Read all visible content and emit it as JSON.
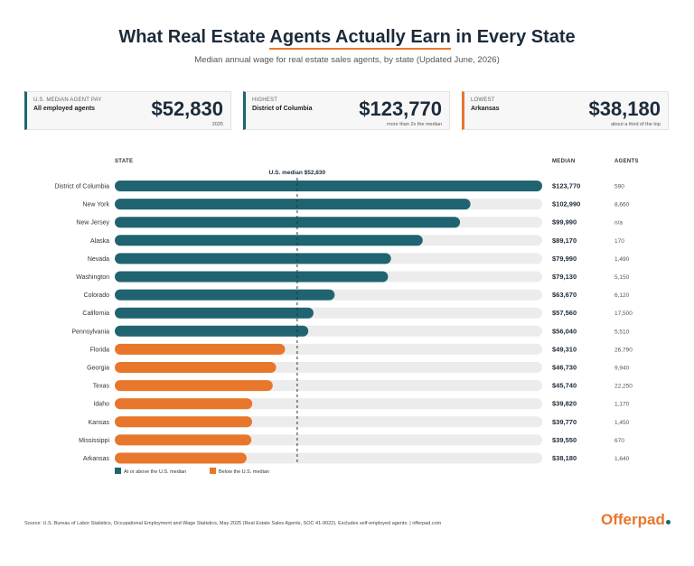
{
  "title_pre": "What Real Estate ",
  "title_hl": "Agents Actually Earn",
  "title_post": " in Every State",
  "subtitle": "Median annual wage for real estate sales agents, by state (Updated June, 2026)",
  "cards": [
    {
      "label": "U.S. MEDIAN AGENT PAY",
      "sub": "All employed agents",
      "value": "$52,830",
      "note": "2025",
      "accent": "#1f6470"
    },
    {
      "label": "HIGHEST",
      "sub": "District of Columbia",
      "value": "$123,770",
      "note": "more than 2x the median",
      "accent": "#1f6470"
    },
    {
      "label": "LOWEST",
      "sub": "Arkansas",
      "value": "$38,180",
      "note": "about a third of the top",
      "accent": "#e8762b"
    }
  ],
  "headers": {
    "state": "STATE",
    "median": "MEDIAN",
    "agents": "AGENTS"
  },
  "median_label": "U.S. median $52,830",
  "legend": {
    "above": "At or above the U.S. median",
    "below": "Below the U.S. median"
  },
  "source": "Source: U.S. Bureau of Labor Statistics, Occupational Employment and Wage Statistics, May 2025 (Real Estate Sales Agents, SOC 41-9022). Excludes self-employed agents. | offerpad.com",
  "logo": "Offerpad",
  "colors": {
    "above": "#1f6470",
    "below": "#e8762b",
    "track": "#ececec"
  },
  "chart_data": {
    "type": "bar",
    "orientation": "horizontal",
    "median": 52830,
    "xlim": [
      0,
      123770
    ],
    "categories": [
      "District of Columbia",
      "New York",
      "New Jersey",
      "Alaska",
      "Nevada",
      "Washington",
      "Colorado",
      "California",
      "Pennsylvania",
      "Florida",
      "Georgia",
      "Texas",
      "Idaho",
      "Kansas",
      "Mississippi",
      "Arkansas"
    ],
    "values": [
      123770,
      102990,
      99990,
      89170,
      79990,
      79130,
      63670,
      57560,
      56040,
      49310,
      46730,
      45740,
      39820,
      39770,
      39550,
      38180
    ],
    "value_labels": [
      "$123,770",
      "$102,990",
      "$99,990",
      "$89,170",
      "$79,990",
      "$79,130",
      "$63,670",
      "$57,560",
      "$56,040",
      "$49,310",
      "$46,730",
      "$45,740",
      "$39,820",
      "$39,770",
      "$39,550",
      "$38,180"
    ],
    "agents": [
      "590",
      "8,660",
      "n/a",
      "170",
      "1,490",
      "5,150",
      "6,120",
      "17,500",
      "5,510",
      "26,790",
      "9,940",
      "22,250",
      "1,170",
      "1,450",
      "670",
      "1,640"
    ]
  }
}
